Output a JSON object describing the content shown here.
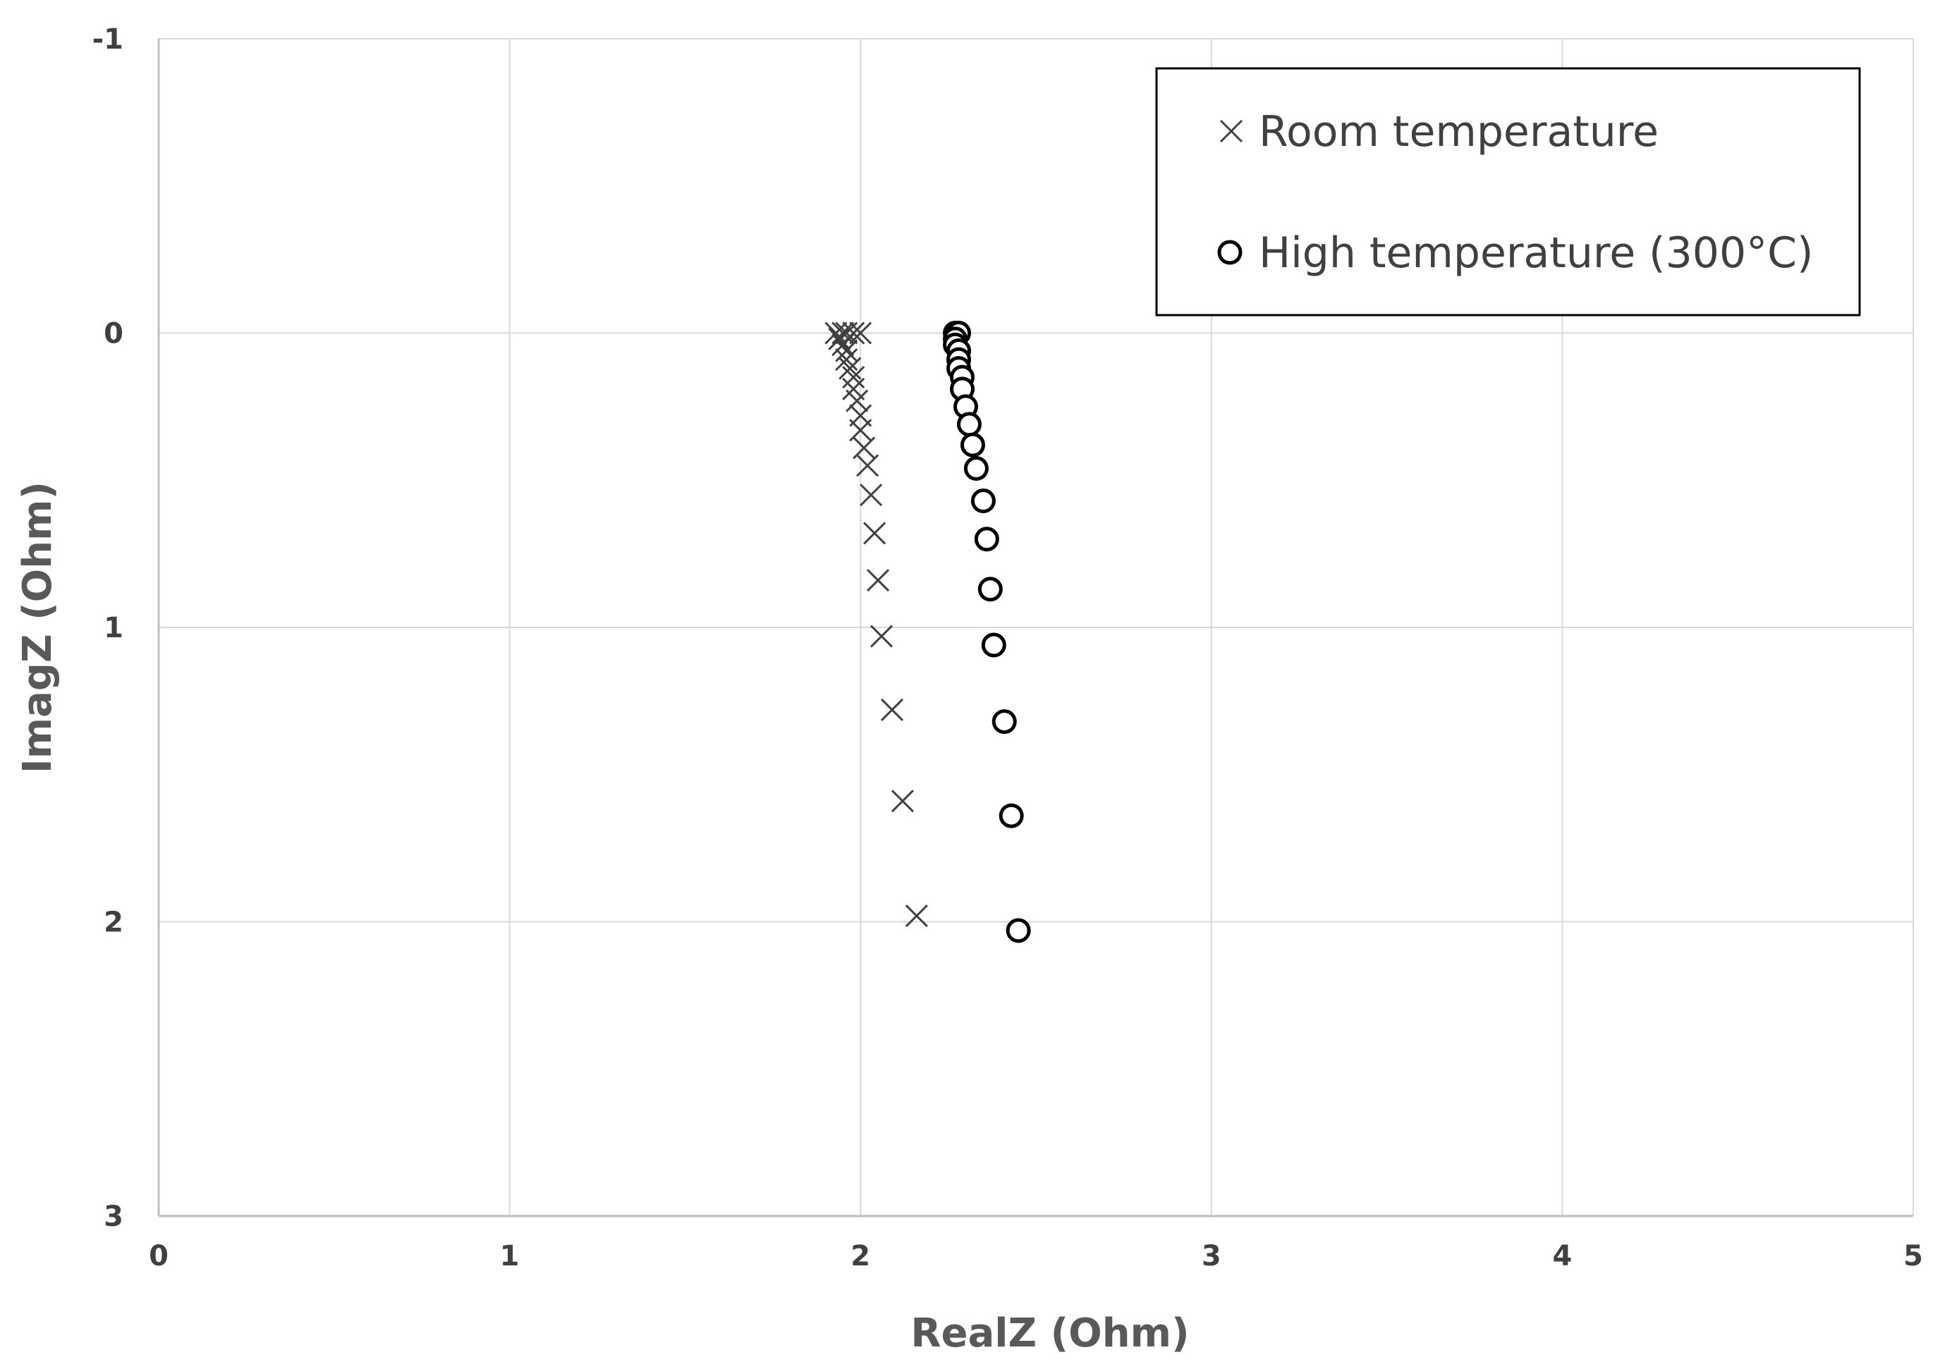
{
  "chart_data": {
    "type": "scatter",
    "xlabel": "RealZ (Ohm)",
    "ylabel": "ImagZ (Ohm)",
    "xlim": [
      0,
      5
    ],
    "ylim": [
      -1,
      3
    ],
    "y_axis_inverted": true,
    "x_ticks": [
      "0",
      "1",
      "2",
      "3",
      "4",
      "5"
    ],
    "y_ticks": [
      "-1",
      "0",
      "1",
      "2",
      "3"
    ],
    "grid": true,
    "legend_position": "top-right",
    "series": [
      {
        "name": "Room temperature",
        "marker": "x",
        "color": "#404040",
        "points": [
          [
            1.93,
            0.0
          ],
          [
            1.95,
            0.0
          ],
          [
            1.96,
            0.0
          ],
          [
            1.98,
            0.0
          ],
          [
            2.0,
            0.0
          ],
          [
            1.94,
            0.02
          ],
          [
            1.95,
            0.04
          ],
          [
            1.96,
            0.06
          ],
          [
            1.96,
            0.09
          ],
          [
            1.97,
            0.12
          ],
          [
            1.98,
            0.15
          ],
          [
            1.98,
            0.19
          ],
          [
            1.99,
            0.23
          ],
          [
            2.0,
            0.28
          ],
          [
            2.0,
            0.33
          ],
          [
            2.01,
            0.39
          ],
          [
            2.02,
            0.45
          ],
          [
            2.03,
            0.55
          ],
          [
            2.04,
            0.68
          ],
          [
            2.05,
            0.84
          ],
          [
            2.06,
            1.03
          ],
          [
            2.09,
            1.28
          ],
          [
            2.12,
            1.59
          ],
          [
            2.16,
            1.98
          ]
        ]
      },
      {
        "name": "High temperature (300°C)",
        "marker": "o",
        "color": "#000000",
        "points": [
          [
            2.27,
            0.0
          ],
          [
            2.28,
            0.0
          ],
          [
            2.27,
            0.02
          ],
          [
            2.27,
            0.04
          ],
          [
            2.28,
            0.06
          ],
          [
            2.28,
            0.09
          ],
          [
            2.28,
            0.12
          ],
          [
            2.29,
            0.15
          ],
          [
            2.29,
            0.19
          ],
          [
            2.3,
            0.25
          ],
          [
            2.31,
            0.31
          ],
          [
            2.32,
            0.38
          ],
          [
            2.33,
            0.46
          ],
          [
            2.35,
            0.57
          ],
          [
            2.36,
            0.7
          ],
          [
            2.37,
            0.87
          ],
          [
            2.38,
            1.06
          ],
          [
            2.41,
            1.32
          ],
          [
            2.43,
            1.64
          ],
          [
            2.45,
            2.03
          ]
        ]
      }
    ]
  }
}
